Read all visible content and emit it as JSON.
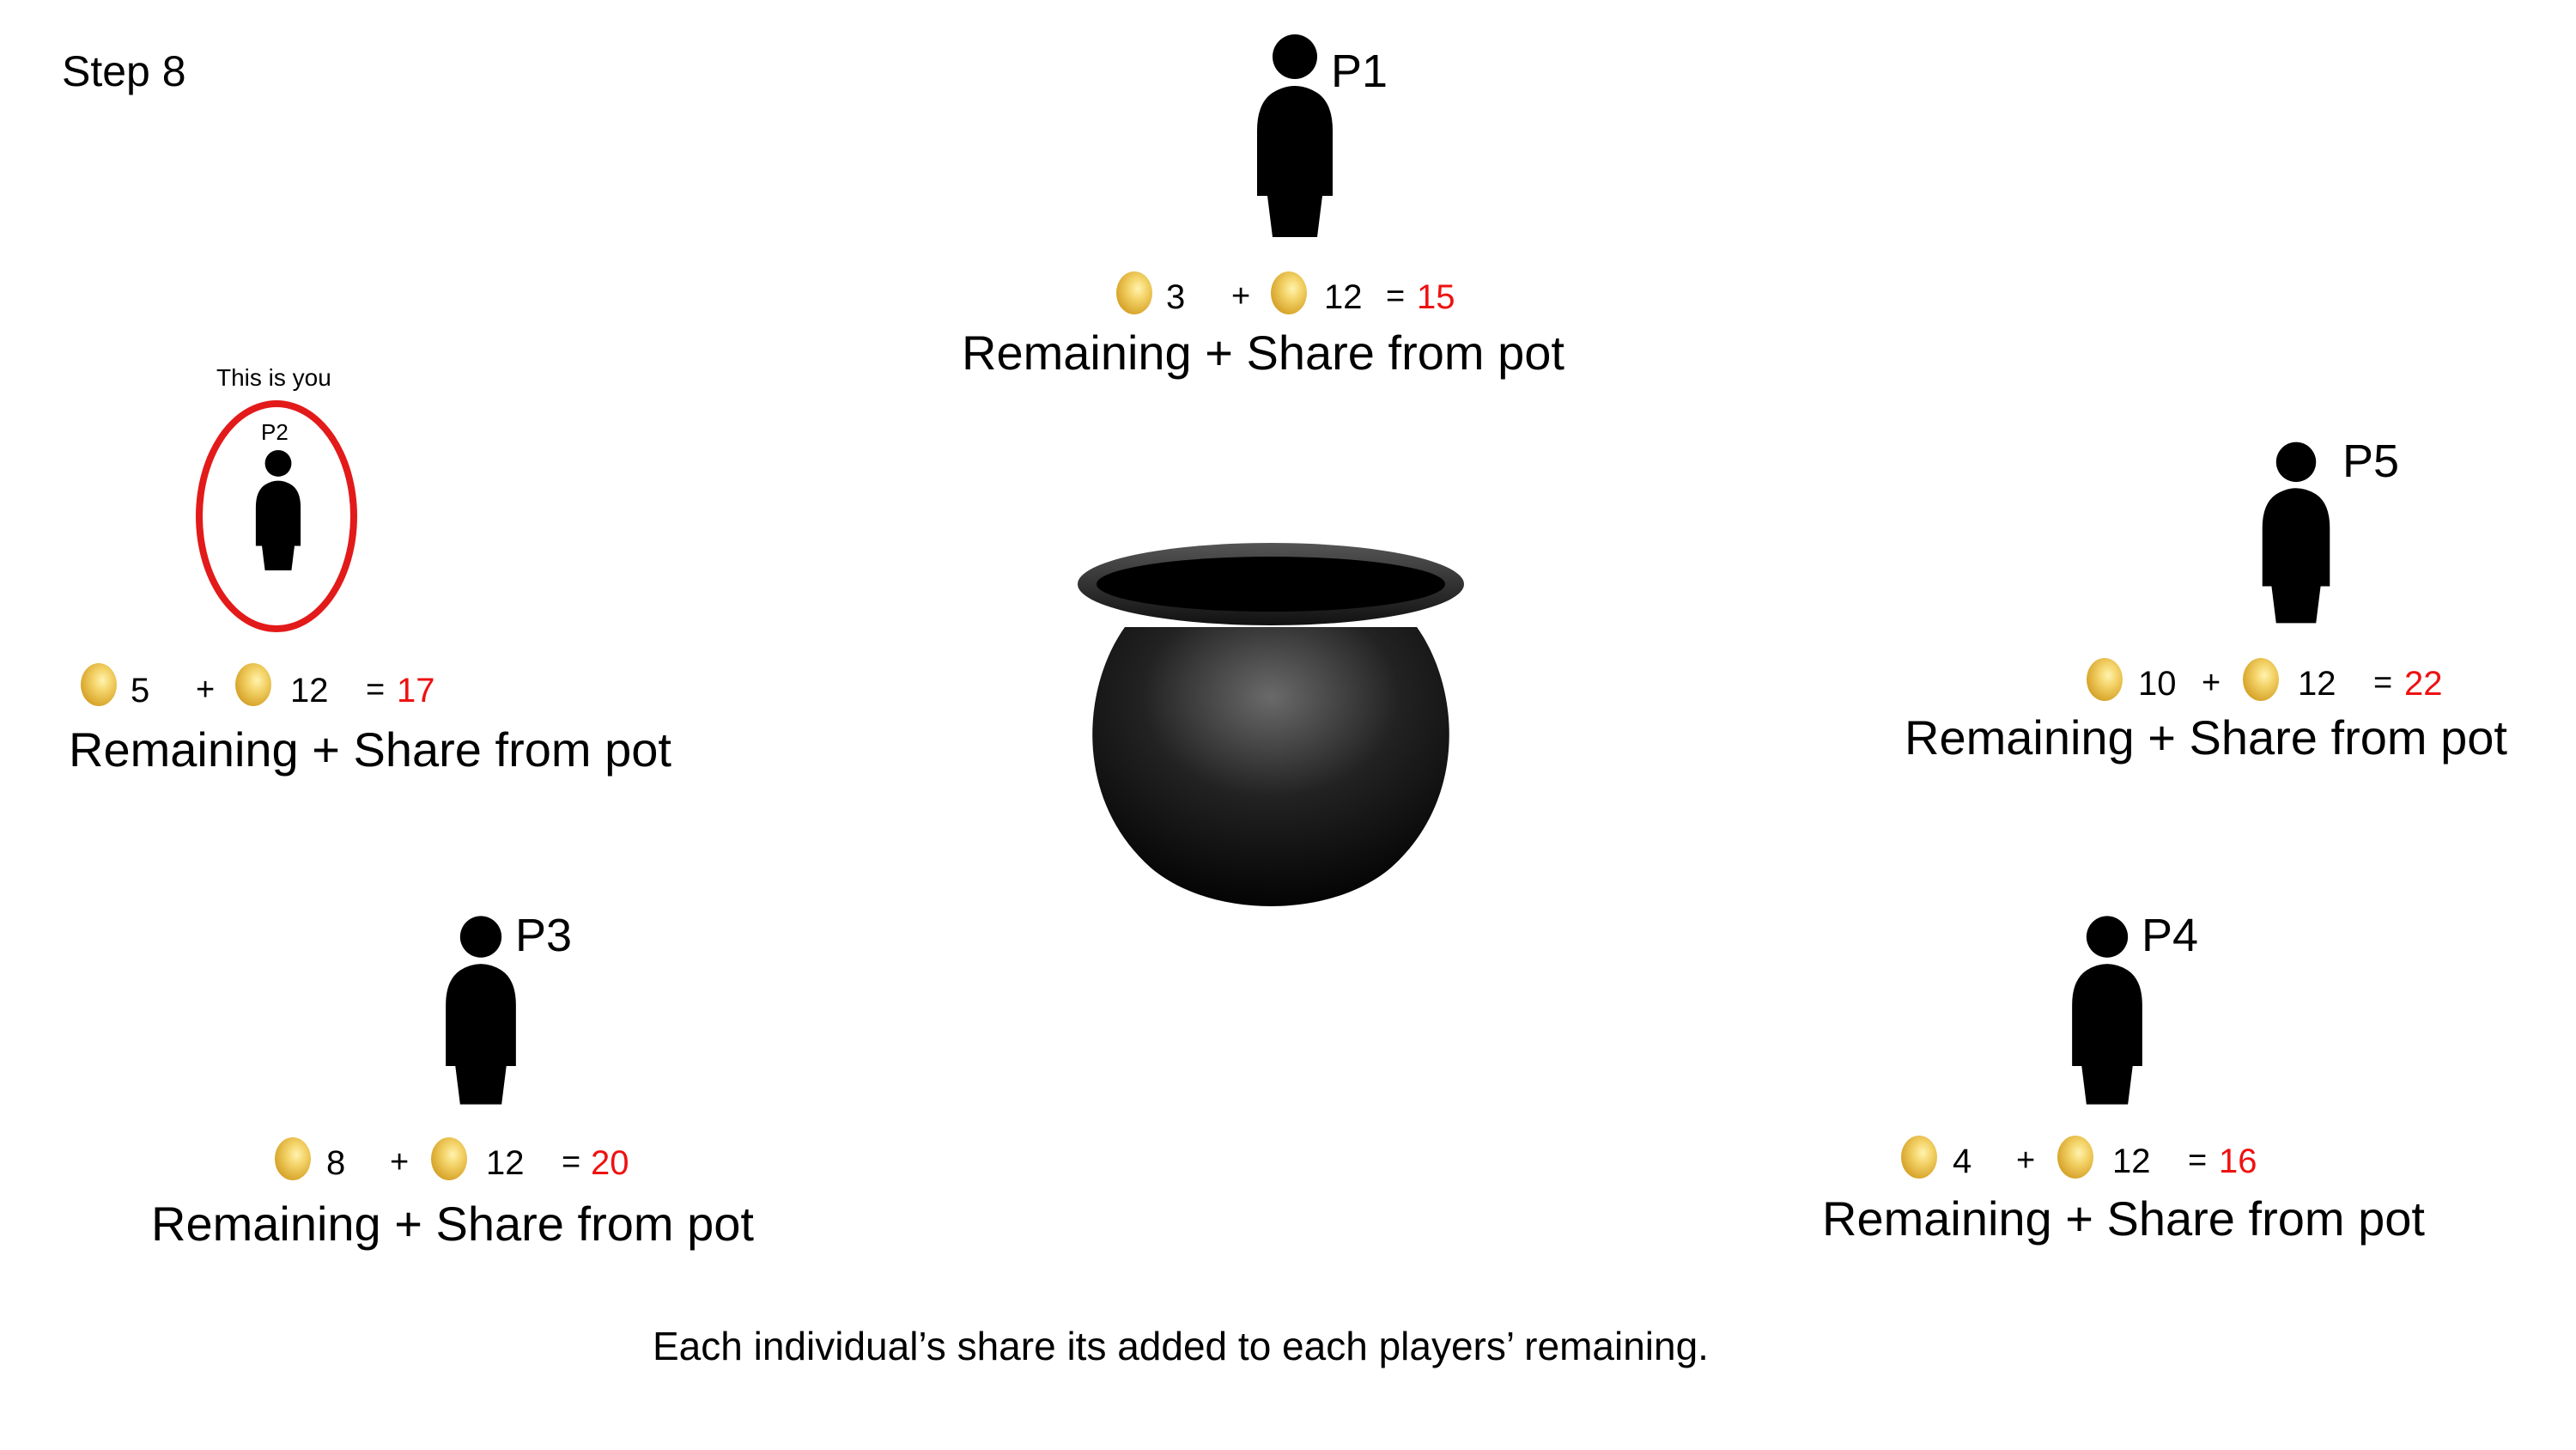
{
  "step_label": "Step 8",
  "caption_text": "Remaining + Share from pot",
  "operators": {
    "plus": "+",
    "equals": "="
  },
  "colors": {
    "total": "#ee1111",
    "highlight_ring": "#e31a1a",
    "figure": "#000000",
    "coin": "#e2b33e"
  },
  "icons": {
    "player": "person-icon",
    "coin": "coin-icon",
    "pot": "pot-icon"
  },
  "you_caption": "This is you",
  "players": {
    "p1": {
      "label": "P1",
      "remaining": "3",
      "share": "12",
      "total": "15"
    },
    "p2": {
      "label": "P2",
      "remaining": "5",
      "share": "12",
      "total": "17"
    },
    "p3": {
      "label": "P3",
      "remaining": "8",
      "share": "12",
      "total": "20"
    },
    "p4": {
      "label": "P4",
      "remaining": "4",
      "share": "12",
      "total": "16"
    },
    "p5": {
      "label": "P5",
      "remaining": "10",
      "share": "12",
      "total": "22"
    }
  },
  "footer_text": "Each individual’s share its added to each players’ remaining."
}
